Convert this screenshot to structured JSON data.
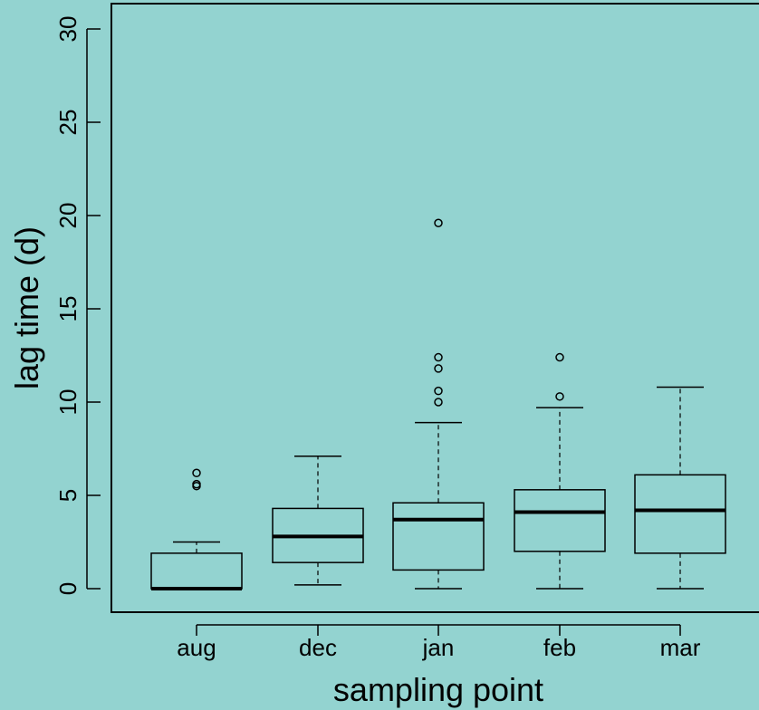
{
  "colors": {
    "background": "#93d3d0",
    "ink": "#000000"
  },
  "chart_data": {
    "type": "boxplot",
    "title": "",
    "xlabel": "sampling point",
    "ylabel": "lag time (d)",
    "ylim": [
      0,
      30
    ],
    "yticks": [
      0,
      5,
      10,
      15,
      20,
      25,
      30
    ],
    "grid": false,
    "categories": [
      "aug",
      "dec",
      "jan",
      "feb",
      "mar"
    ],
    "boxes": [
      {
        "label": "aug",
        "whisker_low": 0.0,
        "q1": 0.0,
        "median": 0.0,
        "q3": 1.9,
        "whisker_high": 2.5,
        "outliers": [
          5.5,
          5.6,
          6.2
        ]
      },
      {
        "label": "dec",
        "whisker_low": 0.2,
        "q1": 1.4,
        "median": 2.8,
        "q3": 4.3,
        "whisker_high": 7.1,
        "outliers": []
      },
      {
        "label": "jan",
        "whisker_low": 0.0,
        "q1": 1.0,
        "median": 3.7,
        "q3": 4.6,
        "whisker_high": 8.9,
        "outliers": [
          10.0,
          10.6,
          11.8,
          12.4,
          19.6
        ]
      },
      {
        "label": "feb",
        "whisker_low": 0.0,
        "q1": 2.0,
        "median": 4.1,
        "q3": 5.3,
        "whisker_high": 9.7,
        "outliers": [
          10.3,
          12.4
        ]
      },
      {
        "label": "mar",
        "whisker_low": 0.0,
        "q1": 1.9,
        "median": 4.2,
        "q3": 6.1,
        "whisker_high": 10.8,
        "outliers": []
      }
    ]
  }
}
